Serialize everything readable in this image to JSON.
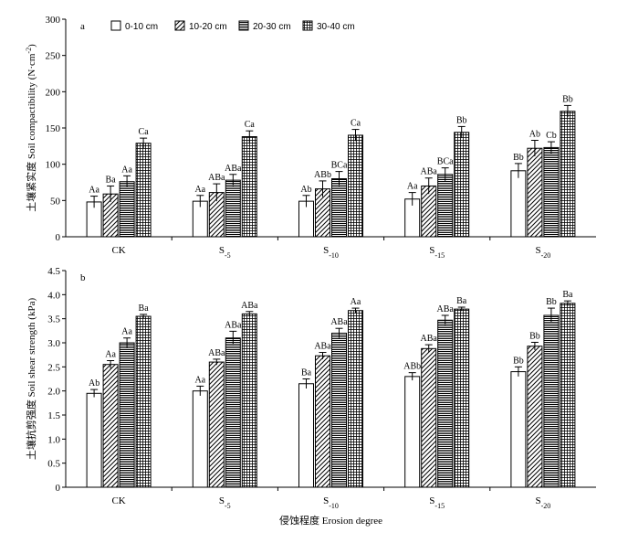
{
  "chart_data": [
    {
      "type": "bar",
      "panel_label": "a",
      "ylabel": "土壤紧实度 Soil compactibility (N·cm⁻²)",
      "ylabel_main": "土壤紧实度 Soil compactibility (N·cm",
      "ylabel_sup": "-2",
      "ylabel_tail": ")",
      "ylim": [
        0,
        300
      ],
      "yticks": [
        0,
        50,
        100,
        150,
        200,
        250,
        300
      ],
      "categories": [
        {
          "base": "CK",
          "sub": ""
        },
        {
          "base": "S",
          "sub": "-5"
        },
        {
          "base": "S",
          "sub": "-10"
        },
        {
          "base": "S",
          "sub": "-15"
        },
        {
          "base": "S",
          "sub": "-20"
        }
      ],
      "legend": {
        "position": "top",
        "entries": [
          "0-10 cm",
          "10-20 cm",
          "20-30 cm",
          "30-40 cm"
        ]
      },
      "series": [
        {
          "name": "0-10 cm",
          "pattern": "plain",
          "values": [
            48,
            49,
            49,
            52,
            91
          ],
          "errors": [
            8,
            8,
            8,
            9,
            10
          ],
          "labels": [
            "Aa",
            "Aa",
            "Ab",
            "Aa",
            "Bb"
          ]
        },
        {
          "name": "10-20 cm",
          "pattern": "diagonal",
          "values": [
            59,
            61,
            66,
            70,
            122
          ],
          "errors": [
            11,
            12,
            11,
            11,
            11
          ],
          "labels": [
            "Ba",
            "ABa",
            "ABb",
            "ABa",
            "Ab"
          ]
        },
        {
          "name": "20-30 cm",
          "pattern": "horizontal",
          "values": [
            76,
            78,
            80,
            86,
            123
          ],
          "errors": [
            8,
            8,
            10,
            9,
            8
          ],
          "labels": [
            "Aa",
            "ABa",
            "BCa",
            "BCa",
            "Cb"
          ]
        },
        {
          "name": "30-40 cm",
          "pattern": "grid",
          "values": [
            129,
            138,
            140,
            144,
            173
          ],
          "errors": [
            7,
            8,
            8,
            8,
            8
          ],
          "labels": [
            "Ca",
            "Ca",
            "Ca",
            "Bb",
            "Bb"
          ]
        }
      ]
    },
    {
      "type": "bar",
      "panel_label": "b",
      "ylabel": "土壤抗剪强度 Soil shear strength (kPa)",
      "ylim": [
        0,
        4.5
      ],
      "yticks": [
        "0",
        "0.5",
        "1.0",
        "1.5",
        "2.0",
        "2.5",
        "3.0",
        "3.5",
        "4.0",
        "4.5"
      ],
      "categories": [
        {
          "base": "CK",
          "sub": ""
        },
        {
          "base": "S",
          "sub": "-5"
        },
        {
          "base": "S",
          "sub": "-10"
        },
        {
          "base": "S",
          "sub": "-15"
        },
        {
          "base": "S",
          "sub": "-20"
        }
      ],
      "xlabel": "侵蚀程度 Erosion degree",
      "series": [
        {
          "name": "0-10 cm",
          "pattern": "plain",
          "values": [
            1.95,
            2.0,
            2.15,
            2.3,
            2.4
          ],
          "errors": [
            0.08,
            0.1,
            0.1,
            0.08,
            0.1
          ],
          "labels": [
            "Ab",
            "Aa",
            "Ba",
            "ABb",
            "Bb"
          ]
        },
        {
          "name": "10-20 cm",
          "pattern": "diagonal",
          "values": [
            2.55,
            2.6,
            2.73,
            2.88,
            2.93
          ],
          "errors": [
            0.08,
            0.06,
            0.07,
            0.08,
            0.08
          ],
          "labels": [
            "Aa",
            "ABa",
            "ABa",
            "ABa",
            "Bb"
          ]
        },
        {
          "name": "20-30 cm",
          "pattern": "horizontal",
          "values": [
            3.0,
            3.1,
            3.2,
            3.47,
            3.57
          ],
          "errors": [
            0.1,
            0.14,
            0.1,
            0.1,
            0.15
          ],
          "labels": [
            "Aa",
            "ABa",
            "ABa",
            "ABa",
            "Bb"
          ]
        },
        {
          "name": "30-40 cm",
          "pattern": "grid",
          "values": [
            3.55,
            3.6,
            3.67,
            3.7,
            3.82
          ],
          "errors": [
            0.04,
            0.05,
            0.05,
            0.04,
            0.05
          ],
          "labels": [
            "Ba",
            "ABa",
            "Aa",
            "Ba",
            "Ba"
          ]
        }
      ]
    }
  ]
}
